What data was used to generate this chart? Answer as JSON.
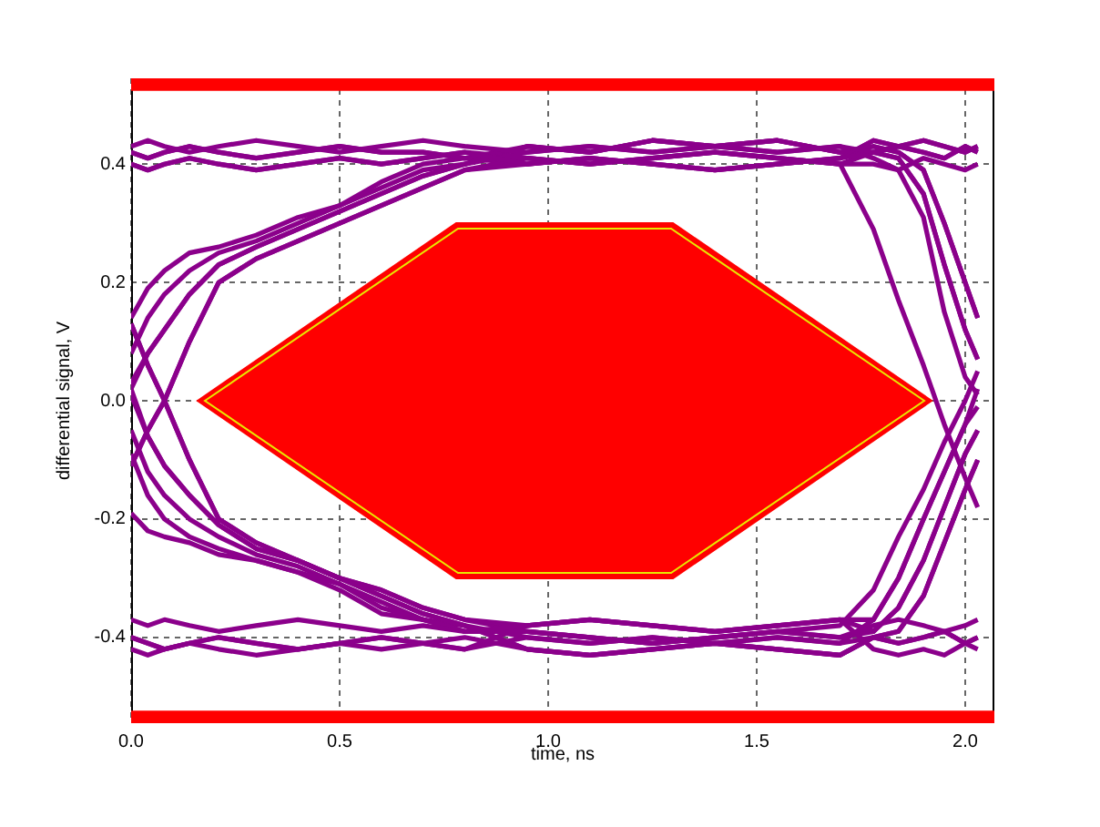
{
  "chart_data": {
    "type": "line",
    "xlabel": "time, ns",
    "ylabel": "differential signal, V",
    "x": [
      0,
      0.04,
      0.08,
      0.14,
      0.21,
      0.3,
      0.4,
      0.5,
      0.6,
      0.7,
      0.8,
      0.95,
      1.1,
      1.25,
      1.4,
      1.55,
      1.7,
      1.78,
      1.84,
      1.9,
      1.95,
      2.0,
      2.03
    ],
    "series": [
      {
        "color": "#8b008b",
        "values": [
          0.43,
          0.44,
          0.43,
          0.42,
          0.43,
          0.44,
          0.43,
          0.42,
          0.43,
          0.44,
          0.43,
          0.42,
          0.43,
          0.42,
          0.43,
          0.42,
          0.43,
          0.42,
          0.43,
          0.42,
          0.41,
          0.43,
          0.42
        ]
      },
      {
        "color": "#8b008b",
        "values": [
          0.4,
          0.39,
          0.4,
          0.41,
          0.4,
          0.39,
          0.4,
          0.41,
          0.4,
          0.41,
          0.42,
          0.4,
          0.41,
          0.4,
          0.39,
          0.4,
          0.41,
          0.42,
          0.41,
          0.35,
          0.23,
          0.12,
          0.07
        ]
      },
      {
        "color": "#8b008b",
        "values": [
          0.42,
          0.41,
          0.42,
          0.43,
          0.42,
          0.41,
          0.42,
          0.43,
          0.42,
          0.42,
          0.41,
          0.43,
          0.42,
          0.44,
          0.43,
          0.44,
          0.42,
          0.43,
          0.42,
          0.39,
          0.3,
          0.2,
          0.14
        ]
      },
      {
        "color": "#8b008b",
        "values": [
          0.14,
          0.19,
          0.22,
          0.25,
          0.26,
          0.28,
          0.31,
          0.33,
          0.37,
          0.4,
          0.41,
          0.41,
          0.4,
          0.41,
          0.42,
          0.41,
          0.4,
          0.4,
          0.39,
          0.41,
          0.4,
          0.39,
          0.4
        ]
      },
      {
        "color": "#8b008b",
        "values": [
          0.03,
          0.08,
          0.12,
          0.18,
          0.23,
          0.26,
          0.29,
          0.32,
          0.35,
          0.38,
          0.4,
          0.42,
          0.43,
          0.42,
          0.43,
          0.42,
          0.43,
          0.41,
          0.39,
          0.31,
          0.15,
          0.04,
          0.01
        ]
      },
      {
        "color": "#8b008b",
        "values": [
          -0.11,
          -0.05,
          0.0,
          0.1,
          0.2,
          0.24,
          0.27,
          0.3,
          0.33,
          0.36,
          0.39,
          0.4,
          0.41,
          0.4,
          0.39,
          0.4,
          0.41,
          0.44,
          0.43,
          0.44,
          0.43,
          0.42,
          0.43
        ]
      },
      {
        "color": "#8b008b",
        "values": [
          0.08,
          0.14,
          0.18,
          0.22,
          0.25,
          0.27,
          0.3,
          0.33,
          0.36,
          0.39,
          0.4,
          0.43,
          0.42,
          0.44,
          0.43,
          0.44,
          0.42,
          0.43,
          0.42,
          0.39,
          0.3,
          0.2,
          0.14
        ]
      },
      {
        "color": "#8b008b",
        "values": [
          0.4,
          0.39,
          0.4,
          0.41,
          0.4,
          0.39,
          0.4,
          0.41,
          0.4,
          0.41,
          0.42,
          0.41,
          0.4,
          0.41,
          0.42,
          0.41,
          0.4,
          0.29,
          0.17,
          0.06,
          -0.04,
          -0.13,
          -0.18
        ]
      },
      {
        "color": "#8b008b",
        "values": [
          0.02,
          0.08,
          0.12,
          0.18,
          0.23,
          0.26,
          0.29,
          0.32,
          0.35,
          0.38,
          0.4,
          0.43,
          0.42,
          0.44,
          0.43,
          0.44,
          0.42,
          0.42,
          0.43,
          0.42,
          0.41,
          0.43,
          0.42
        ]
      },
      {
        "color": "#8b008b",
        "values": [
          -0.11,
          -0.05,
          0.0,
          0.1,
          0.2,
          0.24,
          0.27,
          0.3,
          0.33,
          0.36,
          0.39,
          0.41,
          0.4,
          0.41,
          0.42,
          0.41,
          0.4,
          0.42,
          0.41,
          0.35,
          0.23,
          0.12,
          0.07
        ]
      },
      {
        "color": "#8b008b",
        "values": [
          -0.4,
          -0.41,
          -0.42,
          -0.41,
          -0.4,
          -0.41,
          -0.42,
          -0.41,
          -0.4,
          -0.41,
          -0.42,
          -0.4,
          -0.41,
          -0.4,
          -0.41,
          -0.4,
          -0.41,
          -0.4,
          -0.41,
          -0.4,
          -0.39,
          -0.41,
          -0.4
        ]
      },
      {
        "color": "#8b008b",
        "values": [
          -0.37,
          -0.38,
          -0.37,
          -0.38,
          -0.39,
          -0.38,
          -0.37,
          -0.38,
          -0.39,
          -0.38,
          -0.39,
          -0.38,
          -0.37,
          -0.38,
          -0.39,
          -0.38,
          -0.37,
          -0.39,
          -0.35,
          -0.27,
          -0.18,
          -0.09,
          -0.05
        ]
      },
      {
        "color": "#8b008b",
        "values": [
          -0.42,
          -0.43,
          -0.42,
          -0.41,
          -0.42,
          -0.43,
          -0.42,
          -0.41,
          -0.42,
          -0.41,
          -0.4,
          -0.42,
          -0.43,
          -0.42,
          -0.41,
          -0.42,
          -0.43,
          -0.4,
          -0.39,
          -0.33,
          -0.24,
          -0.15,
          -0.1
        ]
      },
      {
        "color": "#8b008b",
        "values": [
          -0.09,
          -0.16,
          -0.2,
          -0.23,
          -0.25,
          -0.27,
          -0.29,
          -0.31,
          -0.35,
          -0.37,
          -0.39,
          -0.39,
          -0.4,
          -0.41,
          -0.4,
          -0.39,
          -0.4,
          -0.38,
          -0.37,
          -0.38,
          -0.39,
          -0.38,
          -0.37
        ]
      },
      {
        "color": "#8b008b",
        "values": [
          0.01,
          -0.06,
          -0.11,
          -0.16,
          -0.21,
          -0.25,
          -0.27,
          -0.3,
          -0.33,
          -0.36,
          -0.38,
          -0.4,
          -0.41,
          -0.4,
          -0.41,
          -0.4,
          -0.41,
          -0.37,
          -0.3,
          -0.2,
          -0.12,
          -0.04,
          -0.01
        ]
      },
      {
        "color": "#8b008b",
        "values": [
          0.13,
          0.06,
          0.0,
          -0.1,
          -0.2,
          -0.24,
          -0.27,
          -0.3,
          -0.32,
          -0.35,
          -0.37,
          -0.38,
          -0.37,
          -0.38,
          -0.39,
          -0.38,
          -0.37,
          -0.42,
          -0.43,
          -0.42,
          -0.43,
          -0.41,
          -0.42
        ]
      },
      {
        "color": "#8b008b",
        "values": [
          -0.05,
          -0.12,
          -0.16,
          -0.2,
          -0.23,
          -0.26,
          -0.28,
          -0.31,
          -0.34,
          -0.37,
          -0.38,
          -0.42,
          -0.43,
          -0.42,
          -0.41,
          -0.42,
          -0.43,
          -0.4,
          -0.39,
          -0.33,
          -0.24,
          -0.15,
          -0.1
        ]
      },
      {
        "color": "#8b008b",
        "values": [
          -0.19,
          -0.22,
          -0.23,
          -0.24,
          -0.26,
          -0.27,
          -0.29,
          -0.32,
          -0.36,
          -0.37,
          -0.39,
          -0.39,
          -0.4,
          -0.41,
          -0.4,
          -0.39,
          -0.38,
          -0.32,
          -0.23,
          -0.15,
          -0.07,
          0.0,
          0.05
        ]
      },
      {
        "color": "#8b008b",
        "values": [
          0.02,
          -0.06,
          -0.11,
          -0.16,
          -0.21,
          -0.25,
          -0.27,
          -0.3,
          -0.33,
          -0.36,
          -0.38,
          -0.42,
          -0.43,
          -0.42,
          -0.41,
          -0.42,
          -0.43,
          -0.4,
          -0.41,
          -0.4,
          -0.39,
          -0.41,
          -0.4
        ]
      },
      {
        "color": "#8b008b",
        "values": [
          0.13,
          0.06,
          0.0,
          -0.1,
          -0.2,
          -0.24,
          -0.27,
          -0.3,
          -0.32,
          -0.35,
          -0.37,
          -0.39,
          -0.4,
          -0.41,
          -0.4,
          -0.39,
          -0.4,
          -0.39,
          -0.35,
          -0.27,
          -0.18,
          -0.09,
          -0.05
        ]
      },
      {
        "color": "#8b008b",
        "values": [
          0.42,
          0.41,
          0.42,
          0.43,
          0.42,
          0.41,
          0.42,
          0.43,
          0.42,
          0.42,
          0.41,
          0.4,
          0.41,
          0.4,
          0.39,
          0.4,
          0.41,
          0.44,
          0.43,
          0.44,
          0.43,
          0.42,
          0.43
        ]
      },
      {
        "color": "#8b008b",
        "values": [
          -0.4,
          -0.41,
          -0.42,
          -0.41,
          -0.4,
          -0.41,
          -0.42,
          -0.41,
          -0.4,
          -0.41,
          -0.42,
          -0.38,
          -0.37,
          -0.38,
          -0.39,
          -0.38,
          -0.37,
          -0.37,
          -0.3,
          -0.2,
          -0.12,
          -0.04,
          0.02
        ]
      }
    ],
    "bands": [
      {
        "axis": "y",
        "from": 0.524,
        "to": 0.545,
        "color": "#ff0000"
      },
      {
        "axis": "y",
        "from": -0.545,
        "to": -0.524,
        "color": "#ff0000"
      }
    ],
    "xlim": [
      0,
      2.07
    ],
    "ylim": [
      -0.545,
      0.545
    ],
    "xticks": [
      {
        "value": 0,
        "label": "0.0"
      },
      0.5,
      {
        "value": 1,
        "label": "1.0"
      },
      1.5,
      {
        "value": 2,
        "label": "2.0"
      }
    ],
    "yticks": [
      -0.4,
      -0.2,
      {
        "value": 0,
        "label": "0.0"
      },
      0.2,
      0.4
    ],
    "grid": true,
    "marker": "none"
  }
}
